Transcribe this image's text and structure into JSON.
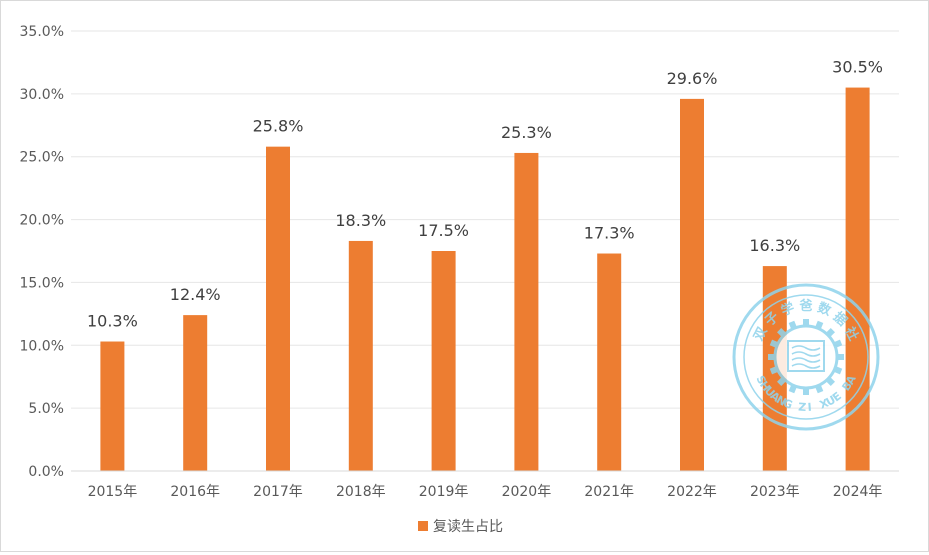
{
  "chart_data": {
    "type": "bar",
    "title": "",
    "xlabel": "",
    "ylabel": "",
    "categories": [
      "2015年",
      "2016年",
      "2017年",
      "2018年",
      "2019年",
      "2020年",
      "2021年",
      "2022年",
      "2023年",
      "2024年"
    ],
    "series": [
      {
        "name": "复读生占比",
        "values": [
          10.3,
          12.4,
          25.8,
          18.3,
          17.5,
          25.3,
          17.3,
          29.6,
          16.3,
          30.5
        ],
        "data_labels": [
          "10.3%",
          "12.4%",
          "25.8%",
          "18.3%",
          "17.5%",
          "25.3%",
          "17.3%",
          "29.6%",
          "16.3%",
          "30.5%"
        ]
      }
    ],
    "ylim": [
      0,
      35
    ],
    "yticks": [
      0,
      5,
      10,
      15,
      20,
      25,
      30,
      35
    ],
    "ytick_labels": [
      "0.0%",
      "5.0%",
      "10.0%",
      "15.0%",
      "20.0%",
      "25.0%",
      "30.0%",
      "35.0%"
    ],
    "grid": true,
    "legend_position": "bottom",
    "bar_color": "#ED7D31"
  },
  "watermark": {
    "text_top": "双子学爸数据社",
    "text_bottom": "SHUANG ZI XUE BA",
    "color": "#8fd3ec"
  }
}
